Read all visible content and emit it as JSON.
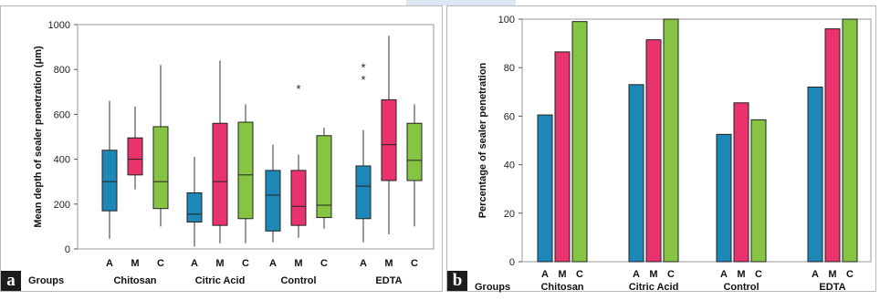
{
  "chart_data": [
    {
      "panel_label": "a",
      "type": "boxplot",
      "ylabel": "Mean depth of sealer penetration (μm)",
      "xlabel": "Groups",
      "ylim": [
        0,
        1000
      ],
      "yticks": [
        0,
        200,
        400,
        600,
        800,
        1000
      ],
      "grid": false,
      "categories": [
        "Chitosan",
        "Citric Acid",
        "Control",
        "EDTA"
      ],
      "subgroups": [
        "A",
        "M",
        "C"
      ],
      "colors": {
        "A": "#1d88b8",
        "M": "#e8336d",
        "C": "#86c543"
      },
      "boxes": [
        {
          "group": "Chitosan",
          "sub": "A",
          "min": 45,
          "q1": 170,
          "median": 300,
          "q3": 440,
          "max": 660,
          "outliers": []
        },
        {
          "group": "Chitosan",
          "sub": "M",
          "min": 265,
          "q1": 330,
          "median": 400,
          "q3": 495,
          "max": 635,
          "outliers": []
        },
        {
          "group": "Chitosan",
          "sub": "C",
          "min": 100,
          "q1": 180,
          "median": 300,
          "q3": 545,
          "max": 820,
          "outliers": []
        },
        {
          "group": "Citric Acid",
          "sub": "A",
          "min": 10,
          "q1": 120,
          "median": 155,
          "q3": 250,
          "max": 410,
          "outliers": []
        },
        {
          "group": "Citric Acid",
          "sub": "M",
          "min": 25,
          "q1": 105,
          "median": 300,
          "q3": 560,
          "max": 840,
          "outliers": []
        },
        {
          "group": "Citric Acid",
          "sub": "C",
          "min": 25,
          "q1": 135,
          "median": 330,
          "q3": 565,
          "max": 645,
          "outliers": []
        },
        {
          "group": "Control",
          "sub": "A",
          "min": 30,
          "q1": 80,
          "median": 240,
          "q3": 350,
          "max": 465,
          "outliers": []
        },
        {
          "group": "Control",
          "sub": "M",
          "min": 50,
          "q1": 105,
          "median": 190,
          "q3": 350,
          "max": 420,
          "outliers": [
            720
          ]
        },
        {
          "group": "Control",
          "sub": "C",
          "min": 90,
          "q1": 140,
          "median": 195,
          "q3": 505,
          "max": 540,
          "outliers": []
        },
        {
          "group": "EDTA",
          "sub": "A",
          "min": 30,
          "q1": 135,
          "median": 280,
          "q3": 370,
          "max": 530,
          "outliers": [
            760,
            815
          ]
        },
        {
          "group": "EDTA",
          "sub": "M",
          "min": 65,
          "q1": 305,
          "median": 465,
          "q3": 665,
          "max": 950,
          "outliers": []
        },
        {
          "group": "EDTA",
          "sub": "C",
          "min": 100,
          "q1": 305,
          "median": 395,
          "q3": 560,
          "max": 645,
          "outliers": []
        }
      ]
    },
    {
      "panel_label": "b",
      "type": "bar",
      "ylabel": "Percentage of sealer penetration",
      "xlabel": "Groups",
      "ylim": [
        0,
        100
      ],
      "yticks": [
        0,
        20,
        40,
        60,
        80,
        100
      ],
      "grid": false,
      "categories": [
        "Chitosan",
        "Citric Acid",
        "Control",
        "EDTA"
      ],
      "subgroups": [
        "A",
        "M",
        "C"
      ],
      "colors": {
        "A": "#1d88b8",
        "M": "#e8336d",
        "C": "#86c543"
      },
      "series": [
        {
          "name": "A",
          "values": [
            60.5,
            73,
            52.5,
            72
          ]
        },
        {
          "name": "M",
          "values": [
            86.5,
            91.5,
            65.5,
            96
          ]
        },
        {
          "name": "C",
          "values": [
            99,
            100,
            58.5,
            100
          ]
        }
      ]
    }
  ]
}
